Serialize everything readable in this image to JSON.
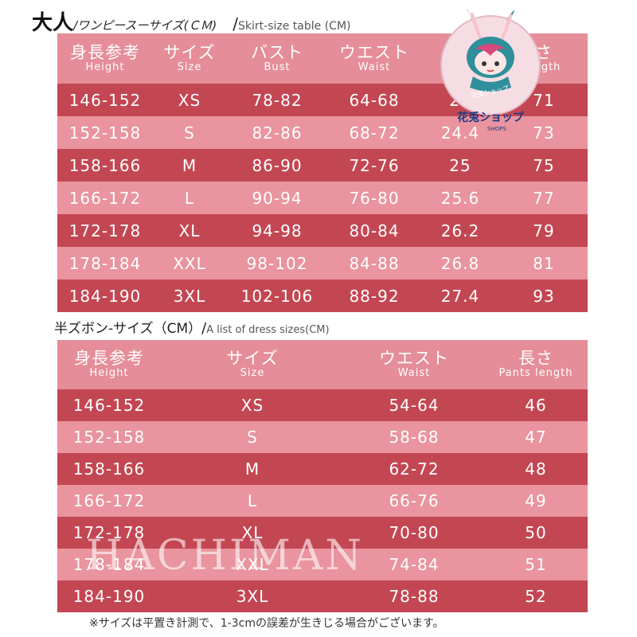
{
  "table1": {
    "heading_big": "大人",
    "heading_jp": "/ワンピースーサイズ(ＣＭ)",
    "heading_slash": "/",
    "heading_en": "Skirt-size table (CM)",
    "headers": [
      {
        "jp": "身長参考",
        "en": "Height"
      },
      {
        "jp": "サイズ",
        "en": "Size"
      },
      {
        "jp": "バスト",
        "en": "Bust"
      },
      {
        "jp": "ウエスト",
        "en": "Waist"
      },
      {
        "jp": "",
        "en": ""
      },
      {
        "jp": "さ",
        "en": "ength"
      }
    ],
    "rows": [
      [
        "146-152",
        "XS",
        "78-82",
        "64-68",
        "23",
        "71"
      ],
      [
        "152-158",
        "S",
        "82-86",
        "68-72",
        "24.4",
        "73"
      ],
      [
        "158-166",
        "M",
        "86-90",
        "72-76",
        "25",
        "75"
      ],
      [
        "166-172",
        "L",
        "90-94",
        "76-80",
        "25.6",
        "77"
      ],
      [
        "172-178",
        "XL",
        "94-98",
        "80-84",
        "26.2",
        "79"
      ],
      [
        "178-184",
        "XXL",
        "98-102",
        "84-88",
        "26.8",
        "81"
      ],
      [
        "184-190",
        "3XL",
        "102-106",
        "88-92",
        "27.4",
        "93"
      ]
    ]
  },
  "table2": {
    "heading_jp": "半ズボン-サイズ（CM）",
    "heading_slash": "/",
    "heading_en": "A list of dress sizes(CM)",
    "headers": [
      {
        "jp": "身長参考",
        "en": "Height"
      },
      {
        "jp": "サイズ",
        "en": "Size"
      },
      {
        "jp": "ウエスト",
        "en": "Waist"
      },
      {
        "jp": "長さ",
        "en": "Pants length"
      }
    ],
    "rows": [
      [
        "146-152",
        "XS",
        "54-64",
        "46"
      ],
      [
        "152-158",
        "S",
        "58-68",
        "47"
      ],
      [
        "158-166",
        "M",
        "62-72",
        "48"
      ],
      [
        "166-172",
        "L",
        "66-76",
        "49"
      ],
      [
        "172-178",
        "XL",
        "70-80",
        "50"
      ],
      [
        "178-184",
        "XXL",
        "74-84",
        "51"
      ],
      [
        "184-190",
        "3XL",
        "78-88",
        "52"
      ]
    ]
  },
  "logo": {
    "text": "花兎ショップ",
    "sub": "SHOPS",
    "icon": "bunny-mascot-icon"
  },
  "watermark": "HACHIMAN",
  "note": "※サイズは平置き計測で、1-3cmの誤差が生きじる場合がございます。",
  "colors": {
    "header": "#e58d98",
    "dark_row": "#c34753",
    "light_row": "#e9949e"
  }
}
